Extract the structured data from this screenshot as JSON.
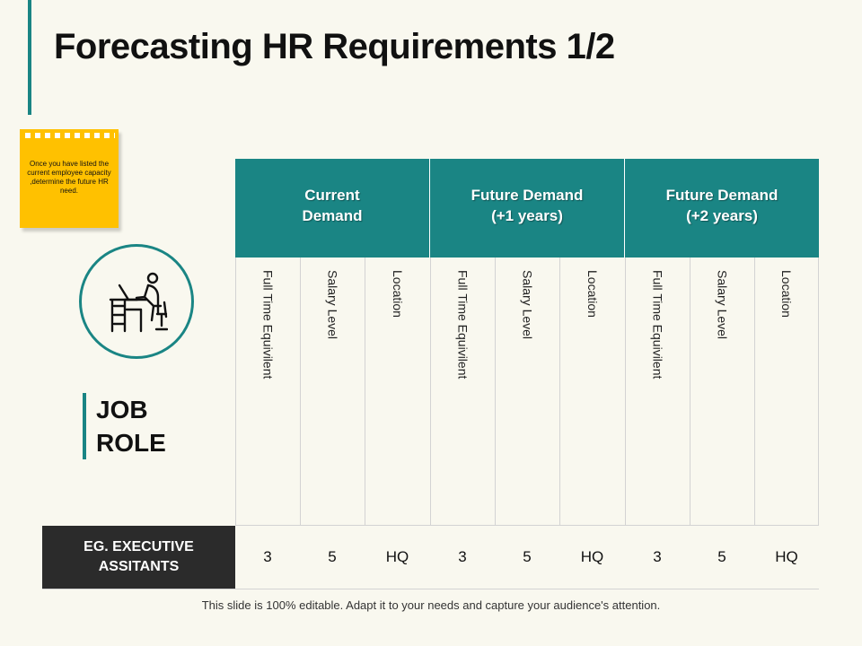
{
  "slide": {
    "title": "Forecasting HR Requirements 1/2",
    "note": "Once you have listed the current employee capacity ,determine the future HR need.",
    "job_role": "JOB ROLE",
    "footer": "This slide is 100% editable. Adapt it to your needs and capture your audience's attention.",
    "icon": "person-at-desk-icon",
    "colors": {
      "accent": "#1a8584",
      "note": "#ffc100",
      "row_label_bg": "#2b2b2b",
      "background": "#f9f8ef"
    }
  },
  "table": {
    "groups": [
      {
        "label": "Current\nDemand",
        "sub": [
          "Full Time Equivilent",
          "Salary Level",
          "Location"
        ]
      },
      {
        "label": "Future Demand\n(+1 years)",
        "sub": [
          "Full Time Equivilent",
          "Salary Level",
          "Location"
        ]
      },
      {
        "label": "Future Demand\n(+2 years)",
        "sub": [
          "Full Time Equivilent",
          "Salary Level",
          "Location"
        ]
      }
    ],
    "rows": [
      {
        "label": "EG. EXECUTIVE\nASSITANTS",
        "values": [
          "3",
          "5",
          "HQ",
          "3",
          "5",
          "HQ",
          "3",
          "5",
          "HQ"
        ]
      }
    ]
  }
}
